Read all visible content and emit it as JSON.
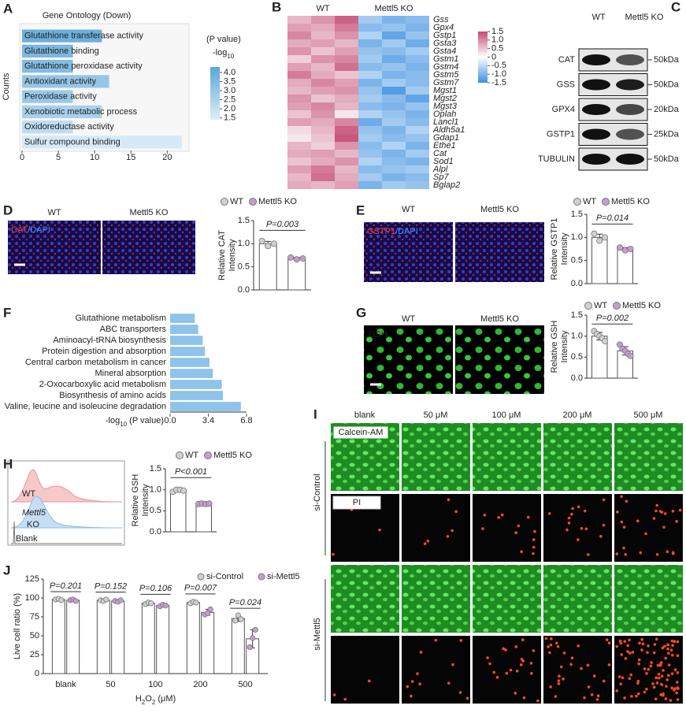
{
  "chart_data": [
    {
      "type": "hbar",
      "title": "Gene Ontology (Down)",
      "ylabel": "Counts",
      "labels_inside": true,
      "categories": [
        "Glutathione transferase activity",
        "Glutathione binding",
        "Glutathione peroxidase activity",
        "Antioxidant activity",
        "Peroxidase activity",
        "Xenobiotic metabolic process",
        "Oxidoreductase activity",
        "Sulfur compound binding"
      ],
      "values": [
        11,
        7,
        7,
        12,
        7,
        11,
        7,
        22
      ],
      "color_values": [
        3.9,
        3.6,
        3.4,
        3.0,
        2.9,
        2.6,
        2.1,
        1.6
      ],
      "colorbar": {
        "title": "(P value)",
        "label": [
          {
            "text": "-log"
          },
          {
            "sub": "10"
          }
        ],
        "clim": [
          1.4,
          4.3
        ],
        "ticks": [
          {
            "value": 4,
            "label": "4.0"
          },
          3.5,
          {
            "value": 3,
            "label": "3.0"
          },
          2.5,
          {
            "value": 2,
            "label": "2.0"
          },
          1.5
        ],
        "colors": [
          "#deeefa",
          "#5ba6d7"
        ]
      },
      "xlim": [
        0,
        23
      ],
      "xticks": [
        0,
        5,
        10,
        15,
        20
      ]
    },
    {
      "type": "heatmap",
      "columns": [
        "WT",
        "Mettl5 KO"
      ],
      "rows": [
        "Gss",
        "Gpx4",
        "Gstp1",
        "Gsta3",
        "Gsta4",
        "Gstm1",
        "Gstm4",
        "Gstm5",
        "Gstm7",
        "Mgst1",
        "Mgst2",
        "Mgst3",
        "Oplah",
        "Lancl1",
        "Aldh5a1",
        "Gdap1",
        "Ethe1",
        "Cat",
        "Sod1",
        "Alpl",
        "Sp7",
        "Bglap2"
      ],
      "values": [
        [
          0.6,
          0.9,
          1.3,
          -0.7,
          -1.0,
          -0.9
        ],
        [
          0.8,
          0.7,
          1.1,
          -0.9,
          -0.8,
          -1.0
        ],
        [
          1.0,
          0.6,
          0.9,
          -0.6,
          -1.2,
          -0.8
        ],
        [
          0.7,
          0.8,
          0.6,
          -1.0,
          -0.7,
          -1.1
        ],
        [
          0.9,
          0.5,
          0.8,
          -0.8,
          -0.9,
          -0.7
        ],
        [
          0.4,
          0.9,
          1.0,
          -0.7,
          -1.1,
          -0.9
        ],
        [
          0.8,
          0.6,
          1.2,
          -0.9,
          -0.8,
          -1.0
        ],
        [
          1.1,
          0.7,
          0.5,
          -0.6,
          -1.0,
          -0.9
        ],
        [
          0.7,
          1.0,
          0.8,
          -1.0,
          -0.7,
          -0.9
        ],
        [
          0.6,
          0.8,
          0.9,
          -0.8,
          -1.3,
          -0.7
        ],
        [
          0.9,
          0.5,
          0.7,
          -0.7,
          -0.9,
          -1.2
        ],
        [
          0.8,
          1.0,
          0.6,
          -0.9,
          -1.0,
          -0.8
        ],
        [
          0.5,
          0.9,
          0.2,
          -0.6,
          -0.8,
          -1.0
        ],
        [
          0.8,
          0.7,
          1.0,
          -1.1,
          -0.7,
          -0.9
        ],
        [
          0.3,
          0.6,
          1.3,
          -0.8,
          -1.0,
          -0.6
        ],
        [
          0.2,
          0.5,
          1.4,
          -0.7,
          -0.9,
          -0.8
        ],
        [
          0.6,
          0.4,
          0.9,
          -0.9,
          -0.6,
          -1.0
        ],
        [
          0.7,
          0.8,
          0.6,
          -0.8,
          -1.0,
          -0.7
        ],
        [
          0.5,
          0.7,
          0.9,
          -0.6,
          -0.9,
          -1.0
        ],
        [
          0.8,
          1.1,
          0.6,
          -0.9,
          -0.8,
          -0.7
        ],
        [
          0.6,
          1.2,
          0.7,
          -0.7,
          -1.0,
          -0.9
        ],
        [
          0.7,
          0.6,
          0.8,
          -1.0,
          -0.7,
          -0.8
        ]
      ],
      "clim": [
        -1.5,
        1.5
      ],
      "cticks": [
        1.5,
        {
          "value": 1,
          "label": "1.0"
        },
        0.5,
        0,
        -0.5,
        {
          "value": -1,
          "label": "-1.0"
        },
        -1.5
      ],
      "colors": [
        "#3a8fe0",
        "#ffffff",
        "#c44b74"
      ]
    },
    {
      "type": "dotbar",
      "ylabel": [
        "Relative CAT",
        "Intensity"
      ],
      "annotation": "P=0.003",
      "ylim": [
        0,
        1.5
      ],
      "yticks": [
        {
          "value": 0,
          "label": "0.0"
        },
        0.5,
        {
          "value": 1,
          "label": "1.0"
        },
        1.5
      ],
      "series": [
        {
          "name": "WT",
          "color": "#d0d0d0",
          "value": 1.0,
          "error": 0.05,
          "points": [
            1.06,
            0.95,
            1.0
          ]
        },
        {
          "name": "Mettl5 KO",
          "color": "#c99bd1",
          "value": 0.68,
          "error": 0.02,
          "points": [
            0.7,
            0.66,
            0.68
          ]
        }
      ]
    },
    {
      "type": "dotbar",
      "ylabel": [
        "Relative  GSTP1",
        "Intensity"
      ],
      "annotation": "P=0.014",
      "ylim": [
        0,
        1.5
      ],
      "yticks": [
        {
          "value": 0,
          "label": "0.0"
        },
        0.5,
        {
          "value": 1,
          "label": "1.0"
        },
        1.5
      ],
      "series": [
        {
          "name": "WT",
          "color": "#d0d0d0",
          "value": 1.0,
          "error": 0.07,
          "points": [
            1.08,
            0.93,
            1.0
          ]
        },
        {
          "name": "Mettl5 KO",
          "color": "#c99bd1",
          "value": 0.75,
          "error": 0.03,
          "points": [
            0.78,
            0.72,
            0.75
          ]
        }
      ]
    },
    {
      "type": "hbar",
      "label_colors": [
        "#2b7bba",
        "#222222",
        "#222222",
        "#222222",
        "#222222",
        "#222222",
        "#222222",
        "#222222",
        "#222222"
      ],
      "color": "#8ec3ea",
      "categories": [
        "Glutathione metabolism",
        "ABC transporters",
        "Aminoacyl-tRNA biosynthesis",
        "Protein digestion and absorption",
        "Central carbon metabolism in cancer",
        "Mineral absorption",
        "2-Oxocarboxylic acid metabolism",
        "Biosynthesis of amino acids",
        "Valine, leucine and isoleucine degradation"
      ],
      "values": [
        2.2,
        2.5,
        2.9,
        3.1,
        3.5,
        3.8,
        4.6,
        4.7,
        6.3
      ],
      "xlabel": [
        {
          "text": "-log"
        },
        {
          "sub": "10"
        },
        {
          "text": " (P value)"
        }
      ],
      "xlim": [
        0,
        6.8
      ],
      "xticks": [
        {
          "value": 0,
          "label": "0.0"
        },
        3.4,
        6.8
      ]
    },
    {
      "type": "dotbar",
      "ylabel": [
        "Relative GSH",
        "Intensity"
      ],
      "annotation": "P=0.002",
      "ylim": [
        0,
        1.5
      ],
      "yticks": [
        {
          "value": 0,
          "label": "0.0"
        },
        0.5,
        {
          "value": 1,
          "label": "1.0"
        },
        1.5
      ],
      "series": [
        {
          "name": "WT",
          "color": "#d0d0d0",
          "value": 1.0,
          "error": 0.09,
          "points": [
            1.12,
            1.05,
            1.0,
            0.95,
            0.88
          ]
        },
        {
          "name": "Mettl5 KO",
          "color": "#c99bd1",
          "value": 0.65,
          "error": 0.1,
          "points": [
            0.8,
            0.7,
            0.65,
            0.58,
            0.53
          ]
        }
      ]
    },
    {
      "type": "dotbar",
      "ylabel": [
        "Relative GSH",
        "Intensity"
      ],
      "annotation": "P<0.001",
      "ylim": [
        0,
        1.5
      ],
      "yticks": [
        {
          "value": 0,
          "label": "0.0"
        },
        0.5,
        {
          "value": 1,
          "label": "1.0"
        },
        1.5
      ],
      "series": [
        {
          "name": "WT",
          "color": "#d0d0d0",
          "value": 0.98,
          "error": 0.03,
          "points": [
            0.95,
            1.0,
            1.0,
            0.98
          ]
        },
        {
          "name": "Mettl5 KO",
          "color": "#c99bd1",
          "value": 0.67,
          "error": 0.01,
          "points": [
            0.66,
            0.67,
            0.66,
            0.67
          ]
        }
      ]
    },
    {
      "type": "groupbar",
      "ylabel": "Live cell ratio (%)",
      "xlabel": [
        {
          "text": "H"
        },
        {
          "sub": "2"
        },
        {
          "text": "O"
        },
        {
          "sub": "2"
        },
        {
          "text": " (μM)"
        }
      ],
      "categories": [
        "blank",
        "50",
        "100",
        "200",
        "500"
      ],
      "annotations": [
        "P=0.201",
        "P=0.152",
        "P=0.106",
        "P=0.007",
        "P=0.024"
      ],
      "ylim": [
        0,
        125
      ],
      "yticks": [
        0,
        25,
        50,
        75,
        100,
        125
      ],
      "series": [
        {
          "name": "si-Control",
          "color": "#d0d0d0",
          "values": [
            98,
            97,
            93,
            94,
            73
          ],
          "errors": [
            1,
            1.5,
            2.5,
            2,
            4
          ],
          "points": [
            [
              98,
              99,
              97
            ],
            [
              97,
              96,
              98
            ],
            [
              92,
              94,
              93
            ],
            [
              93,
              95,
              94
            ],
            [
              70,
              77,
              72
            ]
          ]
        },
        {
          "name": "si-Mettl5",
          "color": "#c99bd1",
          "values": [
            97,
            96,
            90,
            81,
            46
          ],
          "errors": [
            1,
            1,
            2,
            4,
            12
          ],
          "points": [
            [
              97,
              98,
              96
            ],
            [
              96,
              95,
              97
            ],
            [
              89,
              91,
              90
            ],
            [
              78,
              80,
              85
            ],
            [
              35,
              47,
              58
            ]
          ]
        }
      ]
    }
  ],
  "figure": {
    "letters": [
      "A",
      "B",
      "C",
      "D",
      "E",
      "F",
      "G",
      "H",
      "I",
      "J"
    ],
    "blot": {
      "columns": [
        "WT",
        "Mettl5 KO"
      ],
      "rows": [
        {
          "protein": "CAT",
          "size": "50kDa"
        },
        {
          "protein": "GSS",
          "size": "50kDa"
        },
        {
          "protein": "GPX4",
          "size": "20kDa"
        },
        {
          "protein": "GSTP1",
          "size": "25kDa"
        },
        {
          "protein": "TUBULIN",
          "size": "50kDa"
        }
      ]
    },
    "cat_images": {
      "columns": [
        "WT",
        "Mettl5 KO"
      ],
      "stain": [
        "CAT",
        "/DAPI"
      ]
    },
    "gstp1_images": {
      "columns": [
        "WT",
        "Mettl5 KO"
      ],
      "stain": [
        "GSTP1",
        "/DAPI"
      ]
    },
    "gsh_images": {
      "columns": [
        "WT",
        "Mettl5 KO"
      ],
      "stain": "GSH"
    },
    "flow": {
      "labels": [
        "WT",
        "Mettl5",
        "KO",
        "Blank"
      ]
    },
    "live_dead": {
      "columns": [
        "blank",
        "50 μM",
        "100 μM",
        "200 μM",
        "500 μM"
      ],
      "stains": [
        "Calcein-AM",
        "PI"
      ],
      "groups": [
        "si-Control",
        "si-Mettl5"
      ]
    }
  }
}
